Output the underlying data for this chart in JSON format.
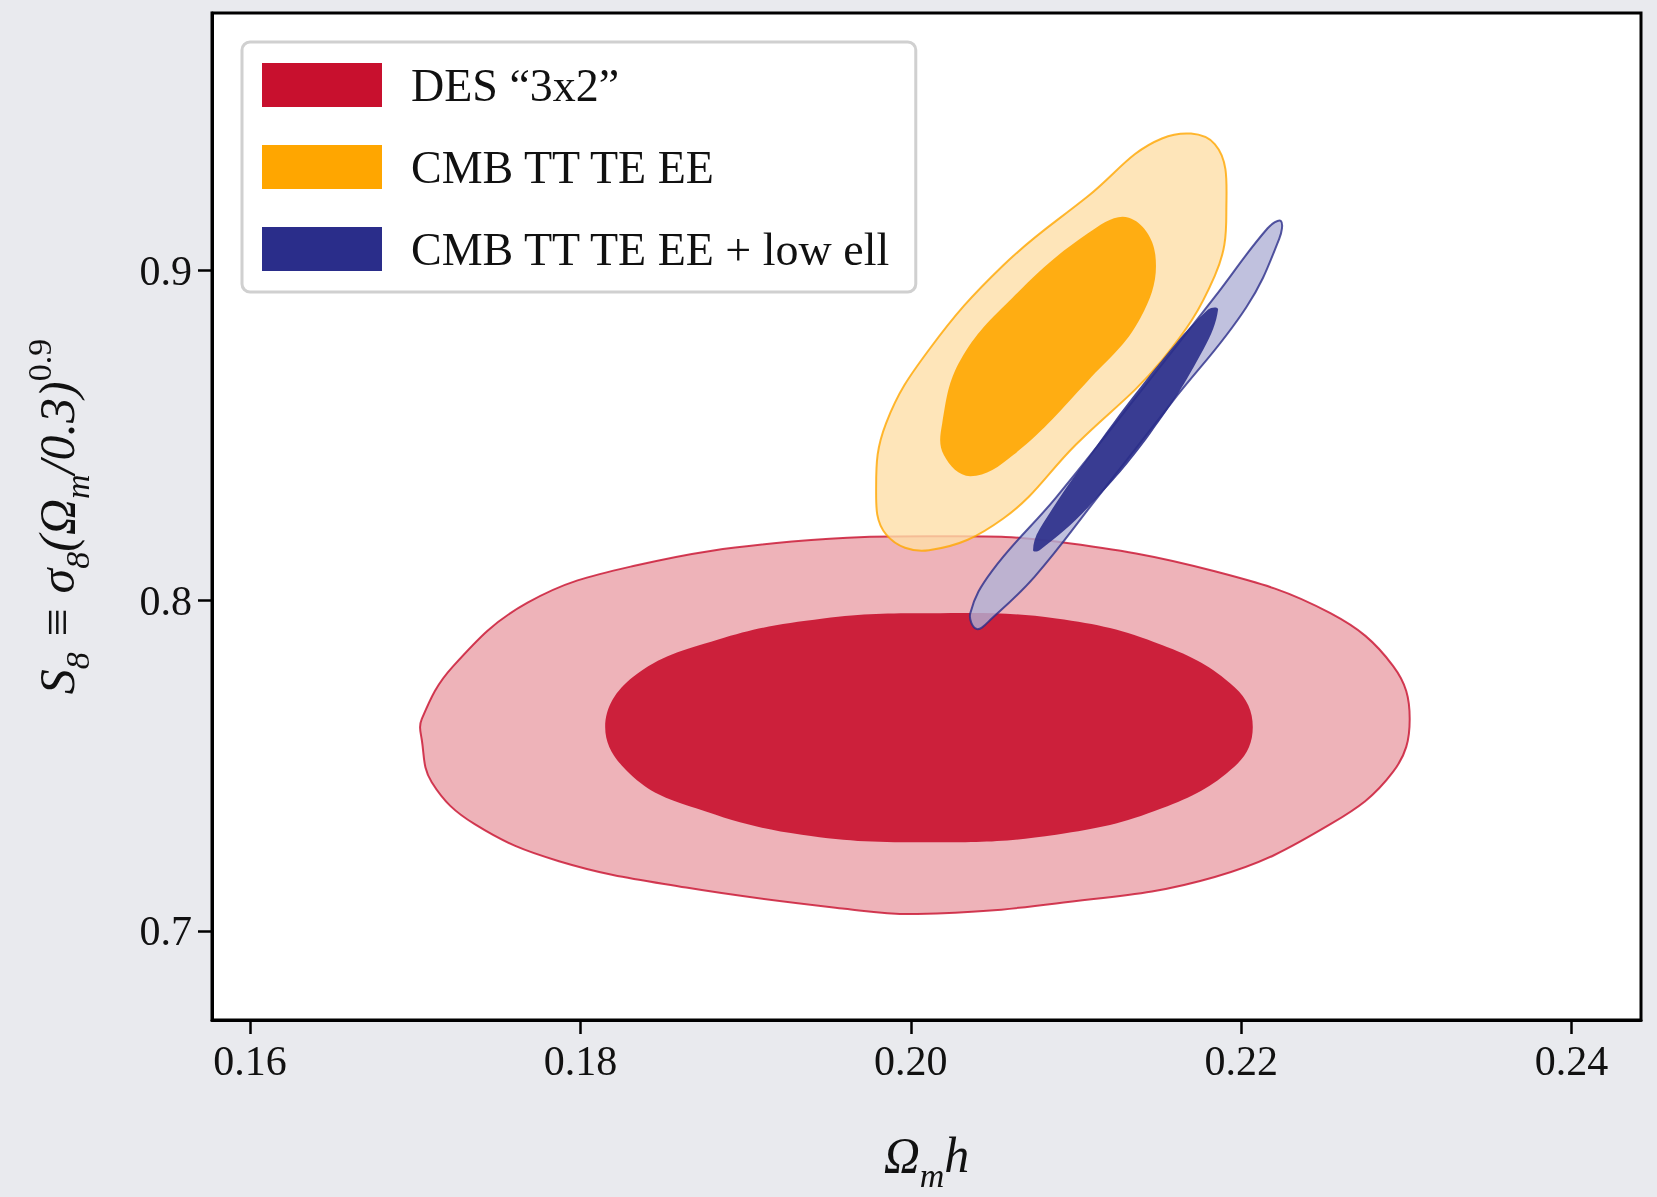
{
  "chart_data": {
    "type": "area",
    "xlabel": "Ω$_{m}$h",
    "ylabel": "S$_{8}$ ≡ σ$_{8}$(Ω$_{m}$/0.3)$^{0.9}$",
    "xlim": [
      0.1577,
      0.2442
    ],
    "ylim": [
      0.673,
      0.978
    ],
    "xticks": [
      0.16,
      0.18,
      {
        "value": 0.2,
        "label": "0.20"
      },
      0.22,
      0.24
    ],
    "yticks": [
      0.7,
      0.8,
      0.9
    ],
    "grid": false,
    "legend": "top left",
    "series": [
      {
        "color": "#eaa0a8",
        "x": [
          0.1704,
          0.171,
          0.1736,
          0.1787,
          0.1864,
          0.196,
          0.2004,
          0.2088,
          0.2184,
          0.2254,
          0.2292,
          0.2302,
          0.2292,
          0.2254,
          0.2184,
          0.2088,
          0.2024,
          0.1928,
          0.1832,
          0.1768,
          0.1723,
          0.1704
        ],
        "values": [
          0.7578,
          0.745,
          0.7323,
          0.7211,
          0.7131,
          0.7067,
          0.7051,
          0.7083,
          0.7163,
          0.7323,
          0.7482,
          0.7642,
          0.7802,
          0.7962,
          0.8089,
          0.8179,
          0.8195,
          0.8179,
          0.8105,
          0.7994,
          0.7802,
          0.7642
        ]
      },
      {
        "name": "DES “3x2”",
        "color": "#c8102e",
        "x": [
          0.1815,
          0.1832,
          0.1883,
          0.1947,
          0.2011,
          0.2088,
          0.2152,
          0.2196,
          0.2207,
          0.2196,
          0.2152,
          0.2088,
          0.2011,
          0.1934,
          0.187,
          0.1832
        ],
        "values": [
          0.7617,
          0.777,
          0.7882,
          0.7946,
          0.7962,
          0.7946,
          0.7866,
          0.7738,
          0.7617,
          0.7498,
          0.7371,
          0.7291,
          0.7268,
          0.7291,
          0.7371,
          0.7466
        ]
      },
      {
        "color": "#fedfa8",
        "x": [
          0.1979,
          0.1985,
          0.2011,
          0.2056,
          0.2107,
          0.2152,
          0.2184,
          0.2191,
          0.2184,
          0.2152,
          0.21,
          0.2056,
          0.2011,
          0.1985
        ],
        "values": [
          0.8345,
          0.8537,
          0.876,
          0.9016,
          0.9224,
          0.94,
          0.9383,
          0.9176,
          0.8984,
          0.8728,
          0.8473,
          0.8249,
          0.8153,
          0.8201
        ]
      },
      {
        "name": "CMB TT TE EE",
        "color": "#ffa600",
        "x": [
          0.2019,
          0.203,
          0.2062,
          0.2107,
          0.2132,
          0.2148,
          0.2139,
          0.2107,
          0.2062,
          0.2036,
          0.202
        ],
        "values": [
          0.8537,
          0.8728,
          0.892,
          0.9112,
          0.916,
          0.9048,
          0.8856,
          0.8665,
          0.8441,
          0.8377,
          0.8441
        ]
      },
      {
        "color": "#b0b2d6",
        "x": [
          0.204,
          0.2036,
          0.2049,
          0.2088,
          0.2139,
          0.2184,
          0.2216,
          0.2224,
          0.2223,
          0.2203,
          0.2158,
          0.2113,
          0.2075,
          0.2049
        ],
        "values": [
          0.7914,
          0.7962,
          0.8089,
          0.8313,
          0.8633,
          0.892,
          0.9128,
          0.915,
          0.9096,
          0.8888,
          0.8601,
          0.8313,
          0.8073,
          0.7946
        ]
      },
      {
        "name": "CMB TT TE EE + low ell",
        "color": "#2a2d8a",
        "x": [
          0.2074,
          0.2078,
          0.2113,
          0.2152,
          0.218,
          0.2186,
          0.2177,
          0.2145,
          0.2107,
          0.2078
        ],
        "values": [
          0.8153,
          0.8217,
          0.8473,
          0.8728,
          0.8882,
          0.8882,
          0.876,
          0.8505,
          0.8281,
          0.8153
        ]
      }
    ]
  }
}
